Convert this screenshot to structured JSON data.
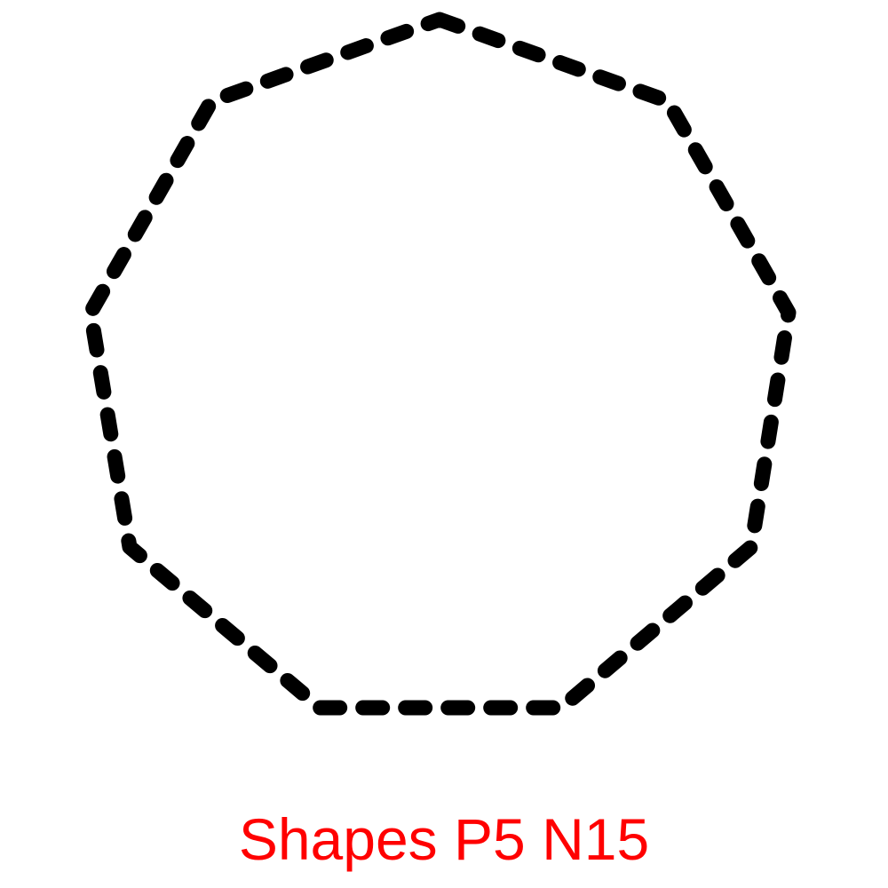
{
  "diagram": {
    "shape": "heptagon",
    "sides": 7,
    "outline_style": "dashed",
    "outline_color": "#000000",
    "fill_color": "#ffffff"
  },
  "caption": {
    "text": "Shapes P5 N15",
    "color": "#ff0000"
  }
}
